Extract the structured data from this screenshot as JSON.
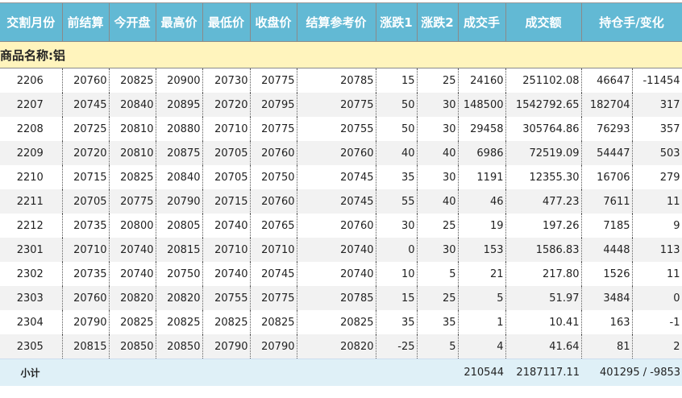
{
  "headers": [
    "交割月份",
    "前结算",
    "今开盘",
    "最高价",
    "最低价",
    "收盘价",
    "结算参考价",
    "涨跌1",
    "涨跌2",
    "成交手",
    "成交额",
    "持仓手/变化"
  ],
  "group_label": "商品名称:铝",
  "rows": [
    [
      "2206",
      "20760",
      "20825",
      "20900",
      "20730",
      "20775",
      "20785",
      "15",
      "25",
      "24160",
      "251102.08",
      "46647",
      "-11454"
    ],
    [
      "2207",
      "20745",
      "20840",
      "20895",
      "20720",
      "20795",
      "20775",
      "50",
      "30",
      "148500",
      "1542792.65",
      "182704",
      "317"
    ],
    [
      "2208",
      "20725",
      "20810",
      "20880",
      "20710",
      "20775",
      "20755",
      "50",
      "30",
      "29458",
      "305764.86",
      "76293",
      "357"
    ],
    [
      "2209",
      "20720",
      "20810",
      "20875",
      "20705",
      "20760",
      "20760",
      "40",
      "40",
      "6986",
      "72519.09",
      "54447",
      "503"
    ],
    [
      "2210",
      "20715",
      "20825",
      "20840",
      "20705",
      "20750",
      "20745",
      "35",
      "30",
      "1191",
      "12355.30",
      "16706",
      "279"
    ],
    [
      "2211",
      "20705",
      "20775",
      "20790",
      "20715",
      "20760",
      "20745",
      "55",
      "40",
      "46",
      "477.23",
      "7611",
      "11"
    ],
    [
      "2212",
      "20735",
      "20800",
      "20805",
      "20740",
      "20765",
      "20760",
      "30",
      "25",
      "19",
      "197.26",
      "7185",
      "9"
    ],
    [
      "2301",
      "20710",
      "20740",
      "20815",
      "20710",
      "20710",
      "20740",
      "0",
      "30",
      "153",
      "1586.83",
      "4448",
      "113"
    ],
    [
      "2302",
      "20735",
      "20740",
      "20750",
      "20740",
      "20745",
      "20740",
      "10",
      "5",
      "21",
      "217.80",
      "1526",
      "11"
    ],
    [
      "2303",
      "20760",
      "20820",
      "20820",
      "20755",
      "20775",
      "20785",
      "15",
      "25",
      "5",
      "51.97",
      "3484",
      "0"
    ],
    [
      "2304",
      "20790",
      "20825",
      "20825",
      "20825",
      "20825",
      "20825",
      "35",
      "35",
      "1",
      "10.41",
      "163",
      "-1"
    ],
    [
      "2305",
      "20815",
      "20850",
      "20850",
      "20790",
      "20790",
      "20820",
      "-25",
      "5",
      "4",
      "41.64",
      "81",
      "2"
    ]
  ],
  "footer": {
    "label": "小计",
    "volume": "210544",
    "turnover": "2187117.11",
    "open_interest": "401295 / -9853"
  }
}
